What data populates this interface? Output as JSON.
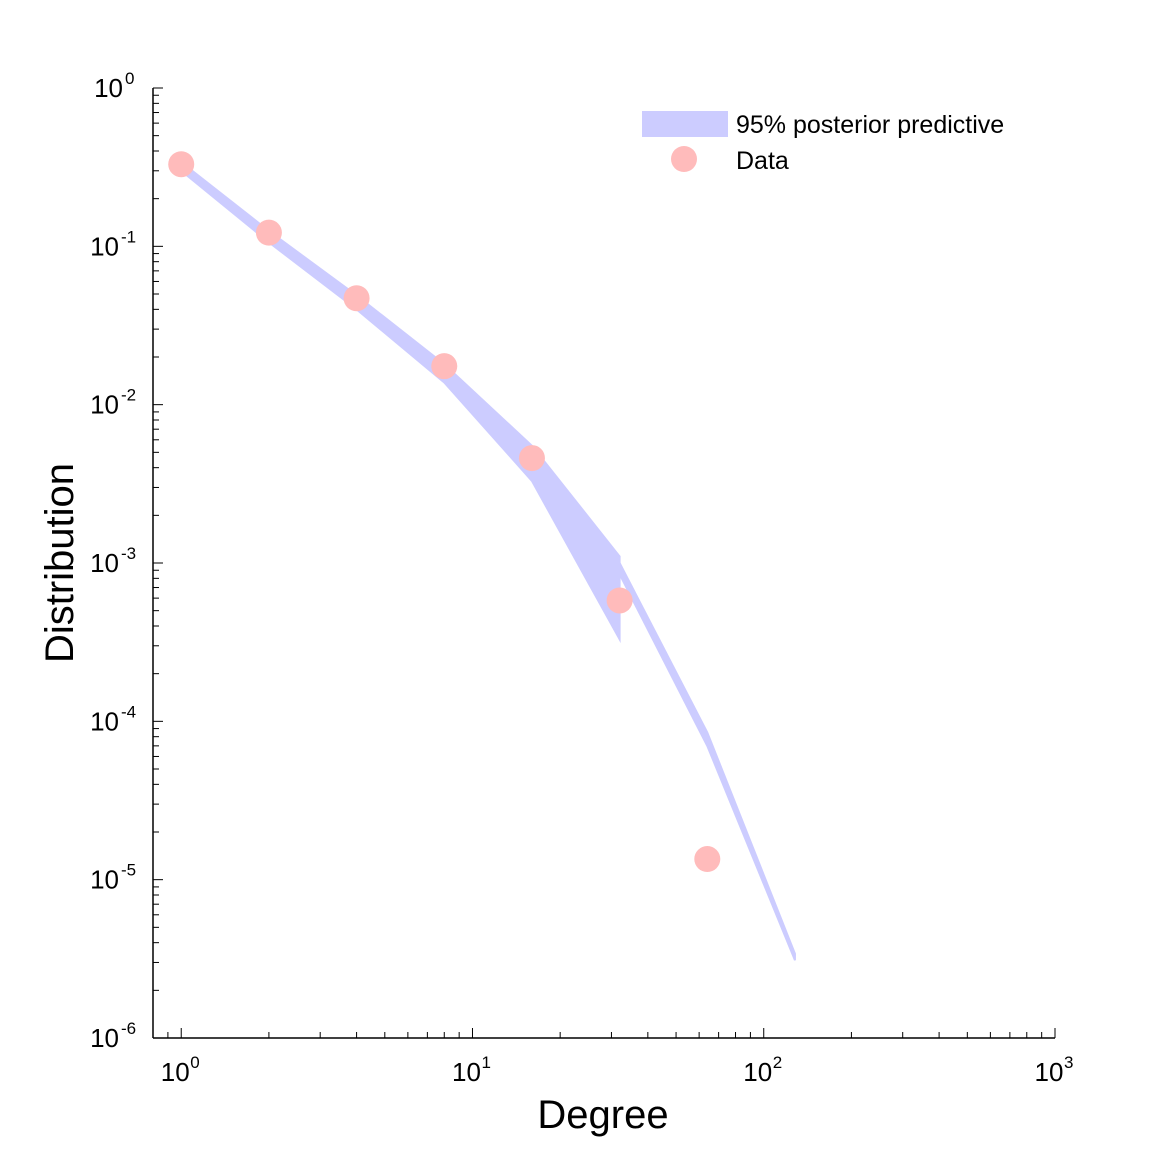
{
  "chart_data": {
    "type": "scatter",
    "xscale": "log",
    "yscale": "log",
    "xlim": [
      0.8,
      1000
    ],
    "ylim": [
      1e-06,
      1
    ],
    "xlabel": "Degree",
    "ylabel": "Distribution",
    "x_ticks": [
      {
        "value": 1,
        "base": "10",
        "exp": "0"
      },
      {
        "value": 10,
        "base": "10",
        "exp": "1"
      },
      {
        "value": 100,
        "base": "10",
        "exp": "2"
      },
      {
        "value": 1000,
        "base": "10",
        "exp": "3"
      }
    ],
    "y_ticks": [
      {
        "value": 1,
        "base": "10",
        "exp": "0"
      },
      {
        "value": 0.1,
        "base": "10",
        "exp": "-1"
      },
      {
        "value": 0.01,
        "base": "10",
        "exp": "-2"
      },
      {
        "value": 0.001,
        "base": "10",
        "exp": "-3"
      },
      {
        "value": 0.0001,
        "base": "10",
        "exp": "-4"
      },
      {
        "value": 1e-05,
        "base": "10",
        "exp": "-5"
      },
      {
        "value": 1e-06,
        "base": "10",
        "exp": "-6"
      }
    ],
    "legend": {
      "position": "top-right",
      "band_label": "95% posterior predictive",
      "points_label": "Data"
    },
    "series": [
      {
        "name": "95% posterior predictive",
        "kind": "band",
        "color": "#ccccff",
        "segments": [
          {
            "x": [
              1,
              2,
              4,
              8,
              16,
              32
            ],
            "lower": [
              0.3,
              0.106,
              0.04,
              0.0138,
              0.0033,
              0.00033
            ],
            "upper": [
              0.34,
              0.125,
              0.049,
              0.018,
              0.0055,
              0.0011
            ]
          },
          {
            "x": [
              32,
              64,
              128
            ],
            "lower": [
              0.00085,
              7e-05,
              3.1e-06
            ],
            "upper": [
              0.001,
              8.5e-05,
              3.4e-06
            ]
          }
        ]
      },
      {
        "name": "Data",
        "kind": "points",
        "color": "#ffbbbb",
        "x": [
          1,
          2,
          4,
          8,
          16,
          32,
          64
        ],
        "y": [
          0.33,
          0.122,
          0.047,
          0.0175,
          0.0046,
          0.00058,
          1.35e-05
        ]
      }
    ]
  }
}
